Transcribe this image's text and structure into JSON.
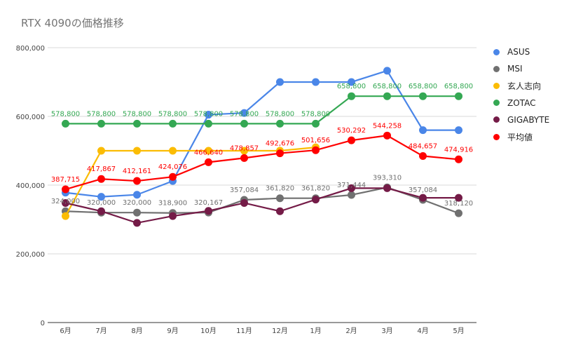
{
  "chart_data": {
    "type": "line",
    "title": "RTX 4090の価格推移",
    "xlabel": "",
    "ylabel": "",
    "ylim": [
      0,
      800000
    ],
    "yticks": [
      0,
      200000,
      400000,
      600000,
      800000
    ],
    "ytick_labels": [
      "0",
      "200,000",
      "400,000",
      "600,000",
      "800,000"
    ],
    "grid": true,
    "legend": "right",
    "categories": [
      "6月",
      "7月",
      "8月",
      "9月",
      "10月",
      "11月",
      "12月",
      "1月",
      "2月",
      "3月",
      "4月",
      "5月"
    ],
    "series": [
      {
        "name": "ASUS",
        "color": "#4a86e8",
        "values": [
          378000,
          366000,
          372000,
          412000,
          605000,
          610000,
          700000,
          700000,
          700000,
          733000,
          560000,
          560000
        ],
        "labels": []
      },
      {
        "name": "MSI",
        "color": "#707070",
        "values": [
          324000,
          320000,
          320000,
          318900,
          320167,
          357084,
          361820,
          361820,
          371444,
          393310,
          357084,
          318120
        ],
        "labels": [
          "324,000",
          "320,000",
          "320,000",
          "318,900",
          "320,167",
          "357,084",
          "361,820",
          "361,820",
          "371,444",
          "393,310",
          "357,084",
          "318,120"
        ]
      },
      {
        "name": "玄人志向",
        "color": "#fbbc04",
        "values": [
          310000,
          500000,
          500000,
          500000,
          500000,
          500000,
          500000,
          510000,
          null,
          null,
          null,
          null
        ],
        "labels": []
      },
      {
        "name": "ZOTAC",
        "color": "#34a853",
        "values": [
          578800,
          578800,
          578800,
          578800,
          578800,
          578800,
          578800,
          578800,
          658800,
          658800,
          658800,
          658800
        ],
        "labels": [
          "578,800",
          "578,800",
          "578,800",
          "578,800",
          "578,800",
          "578,800",
          "578,800",
          "578,800",
          "658,800",
          "658,800",
          "658,800",
          "658,800"
        ]
      },
      {
        "name": "GIGABYTE",
        "color": "#741b47",
        "values": [
          348000,
          324000,
          290000,
          310000,
          325000,
          348000,
          324000,
          358000,
          391000,
          391000,
          363000,
          363000
        ],
        "labels": []
      },
      {
        "name": "平均値",
        "color": "#ff0000",
        "values": [
          387715,
          417867,
          412161,
          424076,
          466640,
          478857,
          492676,
          501656,
          530292,
          544258,
          484657,
          474916
        ],
        "labels": [
          "387,715",
          "417,867",
          "412,161",
          "424,076",
          "466,640",
          "478,857",
          "492,676",
          "501,656",
          "530,292",
          "544,258",
          "484,657",
          "474,916"
        ]
      }
    ]
  }
}
